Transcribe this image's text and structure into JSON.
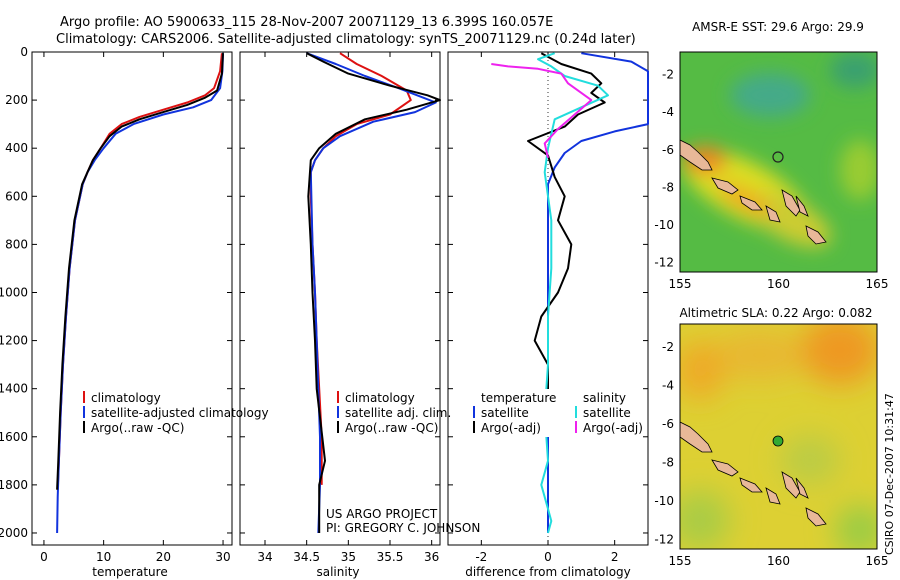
{
  "header": {
    "line1": "Argo profile: AO 5900633_115 28-Nov-2007 20071129_13 6.399S 160.057E",
    "line2": "Climatology: CARS2006. Satellite-adjusted climatology: synTS_20071129.nc (0.24d later)"
  },
  "side_label": "CSIRO 07-Dec-2007 10:31:47",
  "colors": {
    "climatology": "#dd1111",
    "satellite": "#1133dd",
    "argo": "#000000",
    "sat_salinity": "#22dddd",
    "argo_salinity": "#ee22ee",
    "land": "#e8b898",
    "argo_marker_sst": "#222222",
    "argo_marker_sla": "#33aa33"
  },
  "chart_data": [
    {
      "type": "line",
      "name": "temperature",
      "xlabel": "temperature",
      "ylabel": "",
      "xlim": [
        -2,
        31.5
      ],
      "ylim": [
        2050,
        0
      ],
      "xticks": [
        0,
        10,
        20,
        30
      ],
      "yticks": [
        0,
        200,
        400,
        600,
        800,
        1000,
        1200,
        1400,
        1600,
        1800,
        2000
      ],
      "legend": {
        "position": "bottom-right",
        "entries": [
          "climatology",
          "satellite-adjusted climatology",
          "Argo(..raw -QC)"
        ]
      },
      "series": [
        {
          "name": "climatology",
          "color_key": "climatology",
          "x": [
            29.8,
            29.5,
            28.5,
            27.0,
            24.0,
            20.0,
            16.0,
            13.0,
            11.0,
            9.5,
            8.2,
            7.3,
            6.5,
            5.2,
            4.3,
            3.7,
            3.2,
            2.8,
            2.5,
            2.3
          ],
          "y": [
            5,
            80,
            150,
            180,
            210,
            240,
            270,
            300,
            340,
            400,
            450,
            500,
            550,
            700,
            900,
            1100,
            1300,
            1500,
            1700,
            1820
          ]
        },
        {
          "name": "satellite-adjusted climatology",
          "color_key": "satellite",
          "x": [
            30.0,
            29.9,
            29.5,
            28.0,
            25.0,
            20.0,
            15.0,
            12.0,
            10.0,
            8.5,
            7.3,
            6.5,
            5.2,
            4.3,
            3.7,
            3.2,
            2.8,
            2.5,
            2.3,
            2.2
          ],
          "y": [
            5,
            80,
            150,
            200,
            230,
            260,
            300,
            340,
            400,
            450,
            500,
            550,
            700,
            900,
            1100,
            1300,
            1500,
            1700,
            1850,
            2000
          ]
        },
        {
          "name": "Argo(..raw -QC)",
          "color_key": "argo",
          "x": [
            30.0,
            29.8,
            29.0,
            27.0,
            24.0,
            20.0,
            16.0,
            13.0,
            11.0,
            9.5,
            8.2,
            7.3,
            6.4,
            5.1,
            4.2,
            3.6,
            3.1,
            2.7,
            2.4,
            2.2
          ],
          "y": [
            5,
            90,
            160,
            190,
            220,
            250,
            280,
            310,
            350,
            400,
            450,
            500,
            550,
            700,
            900,
            1100,
            1300,
            1500,
            1700,
            1820
          ]
        }
      ]
    },
    {
      "type": "line",
      "name": "salinity",
      "xlabel": "salinity",
      "ylabel": "",
      "xlim": [
        33.7,
        36.1
      ],
      "ylim": [
        2050,
        0
      ],
      "xticks": [
        34,
        34.5,
        35,
        35.5,
        36
      ],
      "yticks": [
        0,
        200,
        400,
        600,
        800,
        1000,
        1200,
        1400,
        1600,
        1800,
        2000
      ],
      "legend": {
        "position": "bottom-right",
        "entries": [
          "climatology",
          "satellite adj. clim.",
          "Argo(..raw -QC)"
        ]
      },
      "annotation": [
        "US ARGO PROJECT",
        "PI: GREGORY C. JOHNSON"
      ],
      "series": [
        {
          "name": "climatology",
          "color_key": "climatology",
          "x": [
            34.9,
            35.1,
            35.4,
            35.7,
            35.75,
            35.5,
            35.1,
            34.85,
            34.7,
            34.6,
            34.55,
            34.55,
            34.57,
            34.6,
            34.62,
            34.65,
            34.68,
            34.68,
            34.68
          ],
          "y": [
            5,
            50,
            100,
            160,
            200,
            260,
            300,
            350,
            400,
            450,
            500,
            600,
            800,
            1000,
            1200,
            1400,
            1600,
            1750,
            1800
          ]
        },
        {
          "name": "satellite adj. clim.",
          "color_key": "satellite",
          "x": [
            34.5,
            34.85,
            35.2,
            35.6,
            35.9,
            36.05,
            35.8,
            35.3,
            34.9,
            34.7,
            34.6,
            34.55,
            34.57,
            34.6,
            34.62,
            34.64,
            34.66,
            34.66,
            34.64
          ],
          "y": [
            5,
            50,
            100,
            150,
            190,
            210,
            250,
            290,
            350,
            400,
            450,
            500,
            800,
            1000,
            1200,
            1400,
            1600,
            1800,
            2000
          ]
        },
        {
          "name": "Argo(..raw -QC)",
          "color_key": "argo",
          "x": [
            34.5,
            34.7,
            35.0,
            35.5,
            35.95,
            36.1,
            35.7,
            35.2,
            34.85,
            34.65,
            34.55,
            34.52,
            34.55,
            34.57,
            34.6,
            34.62,
            34.72,
            34.65,
            34.65
          ],
          "y": [
            5,
            40,
            90,
            140,
            180,
            200,
            240,
            280,
            340,
            400,
            450,
            600,
            800,
            1000,
            1200,
            1400,
            1700,
            1800,
            2000
          ]
        }
      ]
    },
    {
      "type": "line",
      "name": "difference",
      "xlabel": "difference from climatology",
      "ylabel": "",
      "xlim": [
        -3,
        3
      ],
      "ylim": [
        2050,
        0
      ],
      "xticks": [
        -2,
        0,
        2
      ],
      "yticks": [
        0,
        200,
        400,
        600,
        800,
        1000,
        1200,
        1400,
        1600,
        1800,
        2000
      ],
      "legend": {
        "position": "bottom",
        "col1_title": "temperature",
        "col2_title": "salinity",
        "entries": [
          "satellite",
          "Argo(-adj)",
          "satellite",
          "Argo(-adj)"
        ]
      },
      "series": [
        {
          "name": "temperature satellite",
          "color_key": "satellite",
          "x": [
            1.0,
            2.5,
            3.0,
            3.0,
            2.0,
            1.0,
            0.5,
            0.2,
            0.0,
            0.0,
            0.0,
            0.0,
            0.0,
            0.0,
            0.0,
            0.0,
            0.0
          ],
          "y": [
            5,
            40,
            80,
            300,
            330,
            370,
            420,
            480,
            550,
            700,
            900,
            1100,
            1300,
            1500,
            1700,
            1900,
            2000
          ]
        },
        {
          "name": "temperature Argo(-adj)",
          "color_key": "argo",
          "x": [
            -0.2,
            0.4,
            1.3,
            1.6,
            1.3,
            1.7,
            0.9,
            0.5,
            -0.6,
            0.0,
            0.2,
            0.5,
            0.3,
            0.7,
            0.6,
            0.3,
            -0.2,
            -0.4,
            0.0,
            0.0
          ],
          "y": [
            5,
            50,
            90,
            130,
            170,
            210,
            260,
            310,
            370,
            430,
            520,
            600,
            700,
            800,
            900,
            1000,
            1100,
            1200,
            1300,
            1500
          ]
        },
        {
          "name": "salinity satellite",
          "color_key": "sat_salinity",
          "x": [
            0.2,
            -0.3,
            0.1,
            0.5,
            1.5,
            1.8,
            1.0,
            0.2,
            0.0,
            -0.1,
            0.1,
            0.1,
            0.0,
            0.0,
            -0.1,
            0.0,
            -0.2,
            0.0,
            0.1,
            0.0
          ],
          "y": [
            5,
            30,
            60,
            100,
            140,
            180,
            230,
            280,
            400,
            500,
            700,
            900,
            1100,
            1300,
            1500,
            1700,
            1800,
            1900,
            1950,
            2000
          ]
        },
        {
          "name": "salinity Argo(-adj)",
          "color_key": "argo_salinity",
          "x": [
            -1.7,
            -1.2,
            -0.3,
            0.4,
            0.6,
            1.3,
            0.8,
            0.3,
            -0.1,
            0.0
          ],
          "y": [
            50,
            60,
            70,
            90,
            130,
            200,
            260,
            320,
            380,
            440
          ]
        }
      ]
    },
    {
      "type": "heatmap",
      "name": "sst_map",
      "title": "AMSR-E SST: 29.6 Argo: 29.9",
      "xlim": [
        155,
        165
      ],
      "ylim": [
        -12.5,
        -0.8
      ],
      "xticks": [
        155,
        160,
        165
      ],
      "yticks": [
        -2,
        -4,
        -6,
        -8,
        -10,
        -12
      ],
      "argo_position": [
        160.057,
        -6.399
      ]
    },
    {
      "type": "heatmap",
      "name": "sla_map",
      "title": "Altimetric SLA: 0.22 Argo: 0.082",
      "xlim": [
        155,
        165
      ],
      "ylim": [
        -12.5,
        -0.8
      ],
      "xticks": [
        155,
        160,
        165
      ],
      "yticks": [
        -2,
        -4,
        -6,
        -8,
        -10,
        -12
      ],
      "argo_position": [
        160.057,
        -6.399
      ]
    }
  ]
}
